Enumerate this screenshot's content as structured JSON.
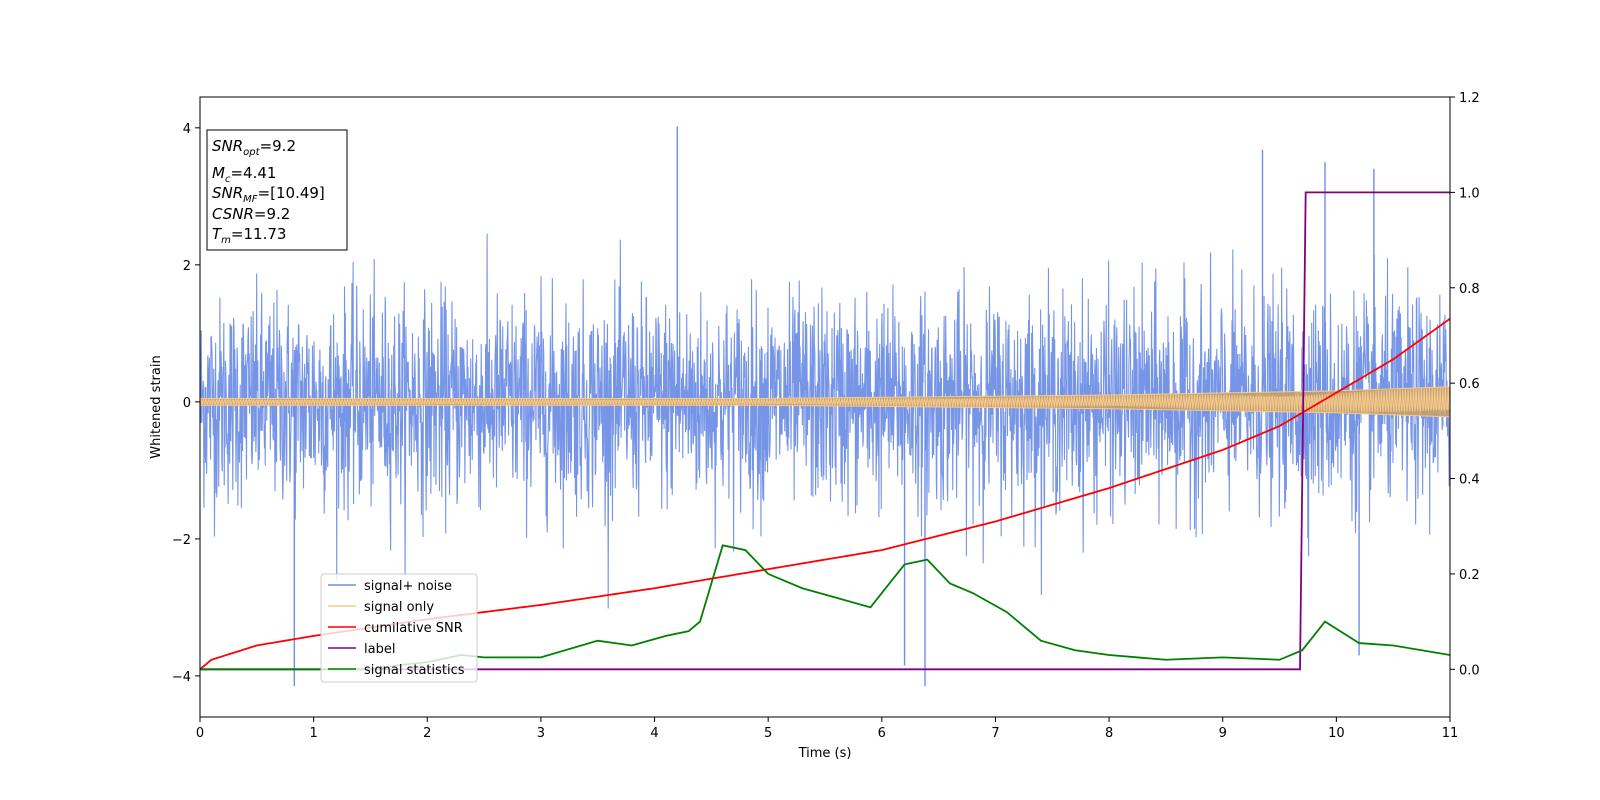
{
  "chart_data": {
    "type": "line",
    "title": "",
    "xlabel": "Time (s)",
    "ylabel": "Whitened strain",
    "xlim": [
      0,
      11
    ],
    "ylim_left": [
      -4.6,
      4.45
    ],
    "ylim_right": [
      -0.1,
      1.2
    ],
    "x_ticks": [
      0,
      1,
      2,
      3,
      4,
      5,
      6,
      7,
      8,
      9,
      10,
      11
    ],
    "y_ticks_left": [
      -4,
      -2,
      0,
      2,
      4
    ],
    "y_ticks_right": [
      0.0,
      0.2,
      0.4,
      0.6,
      0.8,
      1.0,
      1.2
    ],
    "grid": false,
    "legend_position": "lower-left",
    "info_box": {
      "snr_opt": "9.2",
      "mc": "4.41",
      "snr_mf": "[10.49]",
      "csnr": "9.2",
      "tm": "11.73"
    },
    "series": [
      {
        "name": "signal+ noise",
        "axis": "left",
        "color": "#6f8fe6",
        "noise_std": 0.75,
        "notable_extremes": [
          {
            "x": 4.2,
            "y": 4.02
          },
          {
            "x": 9.35,
            "y": 3.68
          },
          {
            "x": 9.9,
            "y": 3.5
          },
          {
            "x": 10.33,
            "y": 3.4
          },
          {
            "x": 0.83,
            "y": -4.15
          },
          {
            "x": 6.38,
            "y": -4.15
          },
          {
            "x": 6.2,
            "y": -3.85
          },
          {
            "x": 10.2,
            "y": -3.7
          }
        ]
      },
      {
        "name": "signal only",
        "axis": "left",
        "color": "#f7c98a",
        "envelope": [
          {
            "x": 0,
            "amp": 0.05
          },
          {
            "x": 5,
            "amp": 0.05
          },
          {
            "x": 8,
            "amp": 0.1
          },
          {
            "x": 10,
            "amp": 0.16
          },
          {
            "x": 11,
            "amp": 0.22
          }
        ]
      },
      {
        "name": "cumilative SNR",
        "axis": "right",
        "color": "#ff0000",
        "points": [
          [
            0,
            0.0
          ],
          [
            0.1,
            0.02
          ],
          [
            0.5,
            0.05
          ],
          [
            1,
            0.07
          ],
          [
            2,
            0.105
          ],
          [
            3,
            0.135
          ],
          [
            4,
            0.17
          ],
          [
            5,
            0.21
          ],
          [
            6,
            0.25
          ],
          [
            7,
            0.31
          ],
          [
            8,
            0.38
          ],
          [
            9,
            0.46
          ],
          [
            9.5,
            0.51
          ],
          [
            10,
            0.58
          ],
          [
            10.5,
            0.65
          ],
          [
            11,
            0.735
          ]
        ]
      },
      {
        "name": "label",
        "axis": "right",
        "color": "#800080",
        "points": [
          [
            0,
            0
          ],
          [
            9.68,
            0
          ],
          [
            9.73,
            1
          ],
          [
            11,
            1
          ]
        ]
      },
      {
        "name": "signal statistics",
        "axis": "right",
        "color": "#008000",
        "points": [
          [
            0,
            0.0
          ],
          [
            1.5,
            0.0
          ],
          [
            1.8,
            0.01
          ],
          [
            2.0,
            0.015
          ],
          [
            2.3,
            0.03
          ],
          [
            2.5,
            0.025
          ],
          [
            3.0,
            0.025
          ],
          [
            3.5,
            0.06
          ],
          [
            3.8,
            0.05
          ],
          [
            4.1,
            0.07
          ],
          [
            4.3,
            0.08
          ],
          [
            4.4,
            0.1
          ],
          [
            4.6,
            0.26
          ],
          [
            4.8,
            0.25
          ],
          [
            5.0,
            0.2
          ],
          [
            5.3,
            0.17
          ],
          [
            5.6,
            0.15
          ],
          [
            5.9,
            0.13
          ],
          [
            6.2,
            0.22
          ],
          [
            6.4,
            0.23
          ],
          [
            6.6,
            0.18
          ],
          [
            6.8,
            0.16
          ],
          [
            7.1,
            0.12
          ],
          [
            7.4,
            0.06
          ],
          [
            7.7,
            0.04
          ],
          [
            8.0,
            0.03
          ],
          [
            8.5,
            0.02
          ],
          [
            9.0,
            0.025
          ],
          [
            9.5,
            0.02
          ],
          [
            9.7,
            0.04
          ],
          [
            9.9,
            0.1
          ],
          [
            10.0,
            0.085
          ],
          [
            10.2,
            0.055
          ],
          [
            10.5,
            0.05
          ],
          [
            11.0,
            0.03
          ]
        ]
      }
    ]
  }
}
